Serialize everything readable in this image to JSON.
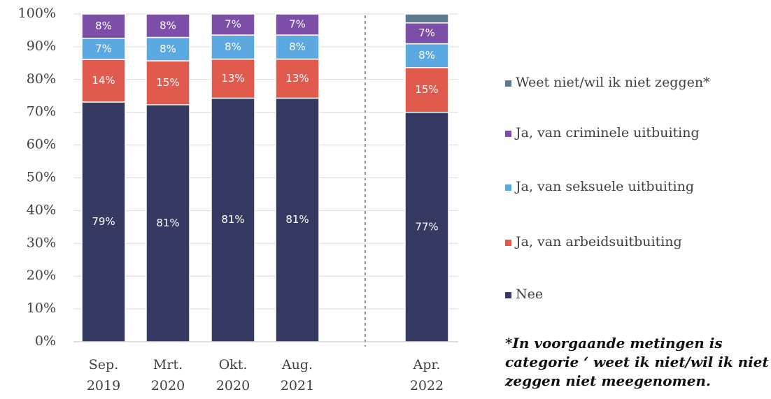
{
  "chart_data": {
    "type": "bar",
    "stacking": "percent",
    "categories": [
      "Sep.\n2019",
      "Mrt.\n2020",
      "Okt.\n2020",
      "Aug.\n2021",
      "Apr.\n2022"
    ],
    "series": [
      {
        "name": "Nee",
        "color": "#363a63",
        "values": [
          79,
          81,
          81,
          81,
          77
        ],
        "value_labels": [
          "79%",
          "81%",
          "81%",
          "81%",
          "77%"
        ]
      },
      {
        "name": "Ja, van arbeidsuitbuiting",
        "color": "#e05a4e",
        "values": [
          14,
          15,
          13,
          13,
          15
        ],
        "value_labels": [
          "14%",
          "15%",
          "13%",
          "13%",
          "15%"
        ]
      },
      {
        "name": "Ja, van seksuele uitbuiting",
        "color": "#5ba9e0",
        "values": [
          7,
          8,
          8,
          8,
          8
        ],
        "value_labels": [
          "7%",
          "8%",
          "8%",
          "8%",
          "8%"
        ]
      },
      {
        "name": "Ja, van criminele uitbuiting",
        "color": "#7d4ea8",
        "values": [
          8,
          8,
          7,
          7,
          7
        ],
        "value_labels": [
          "8%",
          "8%",
          "7%",
          "7%",
          "7%"
        ]
      },
      {
        "name": "Weet niet/wil ik niet zeggen*",
        "color": "#5c7a8e",
        "values": [
          null,
          null,
          null,
          null,
          3
        ],
        "value_labels": [
          null,
          null,
          null,
          null,
          null
        ]
      }
    ],
    "ylim": [
      0,
      100
    ],
    "yticks": [
      {
        "value": 0,
        "label": "0%"
      },
      {
        "value": 10,
        "label": "10%"
      },
      {
        "value": 20,
        "label": "20%"
      },
      {
        "value": 30,
        "label": "30%"
      },
      {
        "value": 40,
        "label": "40%"
      },
      {
        "value": 50,
        "label": "50%"
      },
      {
        "value": 60,
        "label": "60%"
      },
      {
        "value": 70,
        "label": "70%"
      },
      {
        "value": 80,
        "label": "80%"
      },
      {
        "value": 90,
        "label": "90%"
      },
      {
        "value": 100,
        "label": "100%"
      }
    ],
    "grid": true,
    "legend": "right",
    "annotation": "*In voorgaande metingen is categorie ‘ weet ik niet/wil ik niet zeggen niet meegenomen."
  }
}
